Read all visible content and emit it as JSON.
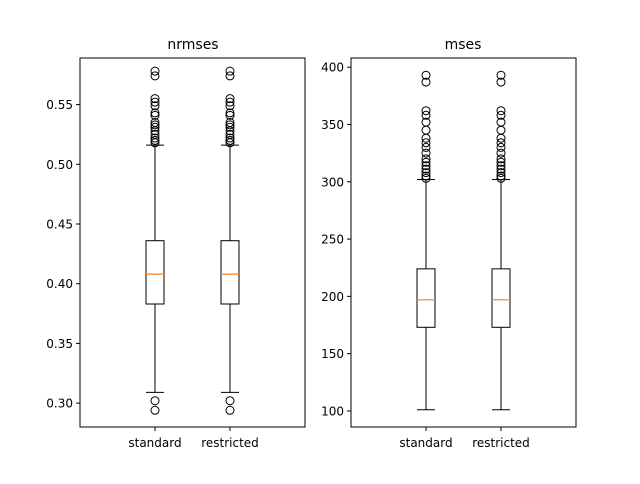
{
  "chart_data": [
    {
      "type": "box",
      "title": "nrmses",
      "categories": [
        "standard",
        "restricted"
      ],
      "ylim": [
        0.28,
        0.589
      ],
      "yticks": [
        0.3,
        0.35,
        0.4,
        0.45,
        0.5,
        0.55
      ],
      "ytick_labels": [
        "0.30",
        "0.35",
        "0.40",
        "0.45",
        "0.50",
        "0.55"
      ],
      "series": [
        {
          "whisker_low": 0.309,
          "q1": 0.383,
          "median": 0.408,
          "q3": 0.436,
          "whisker_high": 0.516,
          "outliers": [
            0.294,
            0.302,
            0.518,
            0.52,
            0.522,
            0.525,
            0.528,
            0.531,
            0.533,
            0.535,
            0.541,
            0.543,
            0.549,
            0.552,
            0.555,
            0.574,
            0.578
          ]
        },
        {
          "whisker_low": 0.309,
          "q1": 0.383,
          "median": 0.408,
          "q3": 0.436,
          "whisker_high": 0.516,
          "outliers": [
            0.294,
            0.302,
            0.518,
            0.52,
            0.522,
            0.525,
            0.528,
            0.531,
            0.533,
            0.535,
            0.541,
            0.543,
            0.549,
            0.552,
            0.555,
            0.574,
            0.578
          ]
        }
      ]
    },
    {
      "type": "box",
      "title": "mses",
      "categories": [
        "standard",
        "restricted"
      ],
      "ylim": [
        86,
        408
      ],
      "yticks": [
        100,
        150,
        200,
        250,
        300,
        350,
        400
      ],
      "ytick_labels": [
        "100",
        "150",
        "200",
        "250",
        "300",
        "350",
        "400"
      ],
      "series": [
        {
          "whisker_low": 101,
          "q1": 173,
          "median": 197,
          "q3": 224,
          "whisker_high": 302,
          "outliers": [
            303,
            305,
            308,
            311,
            314,
            317,
            320,
            325,
            330,
            334,
            338,
            345,
            352,
            358,
            362,
            387,
            393
          ]
        },
        {
          "whisker_low": 101,
          "q1": 173,
          "median": 197,
          "q3": 224,
          "whisker_high": 302,
          "outliers": [
            303,
            305,
            308,
            311,
            314,
            317,
            320,
            325,
            330,
            334,
            338,
            345,
            352,
            358,
            362,
            387,
            393
          ]
        }
      ]
    }
  ],
  "colors": {
    "box": "#000000",
    "median": "#ff7f0e",
    "background": "#ffffff"
  }
}
